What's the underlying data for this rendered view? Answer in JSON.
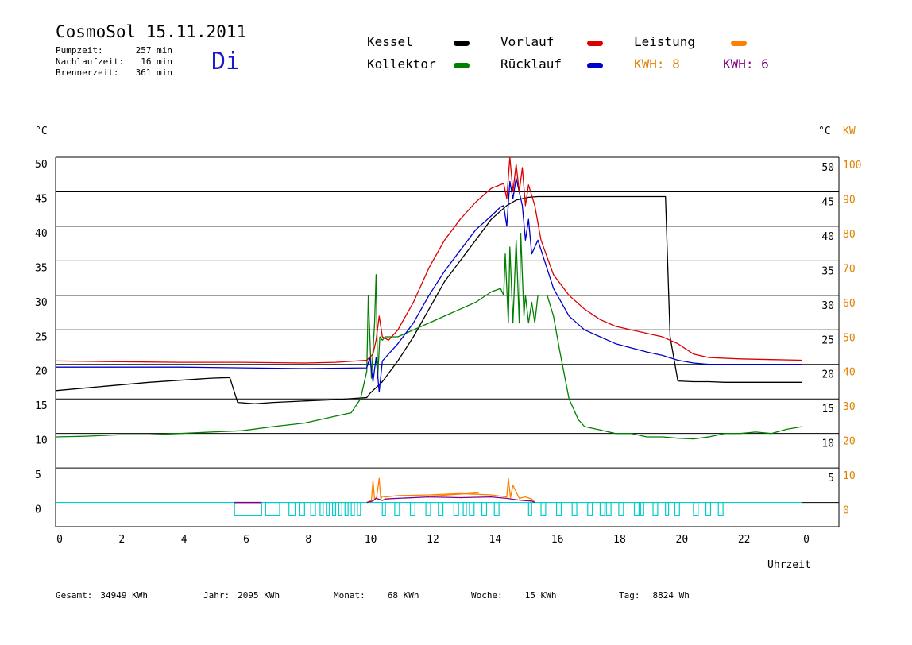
{
  "header": {
    "title": "CosmoSol 15.11.2011",
    "day": "Di",
    "stats": [
      {
        "label": "Pumpzeit:",
        "value": "257 min"
      },
      {
        "label": "Nachlaufzeit:",
        "value": "16 min"
      },
      {
        "label": "Brennerzeit:",
        "value": "361 min"
      }
    ]
  },
  "legend": {
    "kessel": "Kessel",
    "kollektor": "Kollektor",
    "vorlauf": "Vorlauf",
    "ruecklauf": "Rücklauf",
    "leistung": "Leistung",
    "kwh1": "KWH: 8",
    "kwh2": "KWH: 6"
  },
  "colors": {
    "kessel": "#000000",
    "kollektor": "#008000",
    "vorlauf": "#dd0000",
    "ruecklauf": "#0000cc",
    "leistung": "#ff8000",
    "kwh2": "#800080",
    "pump": "#00cccc"
  },
  "footer": {
    "gesamt_label": "Gesamt:",
    "gesamt_value": "34949 KWh",
    "jahr_label": "Jahr:",
    "jahr_value": "2095 KWh",
    "monat_label": "Monat:",
    "monat_value": "68 KWh",
    "woche_label": "Woche:",
    "woche_value": "15 KWh",
    "tag_label": "Tag:",
    "tag_value": "8824 Wh"
  },
  "chart_data": {
    "type": "line",
    "xlabel": "Uhrzeit",
    "ylabel_left": "°C",
    "ylabel_right_temp": "°C",
    "ylabel_right_power": "KW",
    "xlim": [
      0,
      24
    ],
    "ylim": [
      -3.5,
      50
    ],
    "x_ticks": [
      "0",
      "2",
      "4",
      "6",
      "8",
      "10",
      "12",
      "14",
      "16",
      "18",
      "20",
      "22",
      "0"
    ],
    "y_ticks_left": [
      "0",
      "5",
      "10",
      "15",
      "20",
      "25",
      "30",
      "35",
      "40",
      "45",
      "50"
    ],
    "y_ticks_right_temp": [
      "5",
      "10",
      "15",
      "20",
      "25",
      "30",
      "35",
      "40",
      "45",
      "50"
    ],
    "y_ticks_right_power": [
      "0",
      "10",
      "20",
      "30",
      "40",
      "50",
      "60",
      "70",
      "80",
      "90",
      "100"
    ],
    "grid": true,
    "series": [
      {
        "name": "Kessel",
        "key": "kessel",
        "x": [
          0,
          1,
          2,
          3,
          4,
          5,
          5.6,
          5.85,
          6.4,
          7,
          8,
          9,
          10,
          10.1,
          10.5,
          11,
          11.5,
          12,
          12.5,
          13,
          13.5,
          14,
          14.5,
          14.8,
          15.2,
          15.5,
          16,
          17,
          18,
          19,
          19.6,
          19.75,
          20,
          20.5,
          21,
          21.5,
          22,
          23,
          24
        ],
        "y": [
          16.2,
          16.6,
          17,
          17.4,
          17.7,
          18,
          18.1,
          14.5,
          14.3,
          14.5,
          14.7,
          14.9,
          15.2,
          15.8,
          17.5,
          20.5,
          24,
          28,
          32,
          35,
          38,
          41,
          43,
          43.8,
          44.2,
          44.3,
          44.3,
          44.3,
          44.3,
          44.3,
          44.3,
          24,
          17.6,
          17.5,
          17.5,
          17.4,
          17.4,
          17.4,
          17.4
        ]
      },
      {
        "name": "Vorlauf",
        "key": "vorlauf",
        "x": [
          0,
          2,
          4,
          6,
          8,
          9,
          10,
          10.2,
          10.3,
          10.4,
          10.5,
          10.7,
          11,
          11.5,
          12,
          12.5,
          13,
          13.5,
          14,
          14.4,
          14.5,
          14.6,
          14.7,
          14.8,
          14.9,
          15,
          15.1,
          15.2,
          15.4,
          15.6,
          16,
          16.5,
          17,
          17.5,
          18,
          18.5,
          19,
          19.5,
          20,
          20.5,
          21,
          22,
          23,
          24
        ],
        "y": [
          20.5,
          20.4,
          20.3,
          20.3,
          20.2,
          20.3,
          20.6,
          21.5,
          23.5,
          27,
          24,
          23.5,
          25,
          29,
          34,
          38,
          41,
          43.5,
          45.5,
          46.2,
          44,
          50,
          45,
          49,
          45,
          48.5,
          43,
          46,
          43,
          38,
          33,
          30,
          28,
          26.5,
          25.5,
          25,
          24.5,
          24,
          23,
          21.5,
          21,
          20.8,
          20.7,
          20.6
        ]
      },
      {
        "name": "Rücklauf",
        "key": "ruecklauf",
        "x": [
          0,
          2,
          4,
          6,
          8,
          10,
          10.1,
          10.2,
          10.3,
          10.4,
          10.5,
          11,
          11.5,
          12,
          12.5,
          13,
          13.5,
          14,
          14.3,
          14.4,
          14.5,
          14.6,
          14.7,
          14.8,
          14.9,
          15,
          15.1,
          15.2,
          15.3,
          15.5,
          16,
          16.5,
          17,
          18,
          19,
          19.5,
          20,
          20.5,
          21,
          22,
          23,
          24
        ],
        "y": [
          19.6,
          19.6,
          19.6,
          19.5,
          19.4,
          19.5,
          21,
          17.5,
          21,
          16,
          20.5,
          23,
          26,
          30,
          33.5,
          36.5,
          39.5,
          41.5,
          42.8,
          43,
          40,
          46.5,
          44,
          47,
          45,
          43,
          38,
          41,
          36,
          38,
          31,
          27,
          25,
          23,
          21.8,
          21.3,
          20.6,
          20.2,
          20,
          20,
          20,
          20
        ]
      },
      {
        "name": "Kollektor",
        "key": "kollektor",
        "x": [
          0,
          1,
          2,
          3,
          4,
          5,
          6,
          7,
          8,
          9,
          9.5,
          9.8,
          10,
          10.05,
          10.15,
          10.25,
          10.3,
          10.35,
          10.42,
          10.5,
          10.6,
          11,
          11.5,
          12,
          12.5,
          13,
          13.5,
          14,
          14.3,
          14.4,
          14.45,
          14.55,
          14.6,
          14.7,
          14.8,
          14.9,
          14.95,
          15.05,
          15.1,
          15.2,
          15.3,
          15.4,
          15.5,
          15.8,
          16,
          16.2,
          16.5,
          16.8,
          17,
          17.5,
          18,
          18.5,
          19,
          19.5,
          20,
          20.5,
          21,
          21.5,
          22,
          22.5,
          23,
          23.5,
          24
        ],
        "y": [
          9.5,
          9.6,
          9.8,
          9.8,
          10,
          10.2,
          10.4,
          11,
          11.5,
          12.5,
          13,
          15,
          19,
          30,
          18,
          26,
          33,
          18,
          24,
          23.5,
          24,
          24,
          25,
          26,
          27,
          28,
          29,
          30.5,
          31,
          30,
          36,
          26,
          37,
          26,
          38,
          26,
          39,
          27,
          30,
          26,
          29,
          26,
          30,
          30,
          27,
          22,
          15,
          12,
          11,
          10.5,
          10,
          10,
          9.5,
          9.5,
          9.3,
          9.2,
          9.5,
          10,
          10,
          10.2,
          10,
          10.6,
          11
        ]
      },
      {
        "name": "Leistung",
        "key": "leistung",
        "x": [
          10,
          10.15,
          10.2,
          10.25,
          10.32,
          10.4,
          10.45,
          10.5,
          10.6,
          11,
          12,
          12.5,
          13,
          14,
          14.5,
          14.55,
          14.62,
          14.7,
          14.9,
          15.1,
          15.3,
          15.4
        ],
        "y": [
          0,
          0.3,
          3.2,
          0.4,
          0.8,
          3.5,
          0.5,
          0.9,
          0.8,
          1,
          1.1,
          1.2,
          1.3,
          1.1,
          0.8,
          3.5,
          0.7,
          2.5,
          0.6,
          0.8,
          0.5,
          0
        ]
      },
      {
        "name": "KWH 6",
        "key": "kwh2",
        "x": [
          10,
          10.2,
          10.3,
          10.5,
          10.6,
          11,
          12,
          13,
          14,
          14.5,
          14.8,
          15,
          15.3,
          15.4
        ],
        "y": [
          0,
          0.2,
          0.6,
          0.3,
          0.5,
          0.6,
          0.8,
          0.7,
          0.8,
          0.6,
          0.4,
          0.3,
          0.2,
          0
        ]
      }
    ],
    "pump_line_y": 0,
    "pump_blocks": [
      [
        5.75,
        6.62
      ],
      [
        6.75,
        7.2
      ],
      [
        7.5,
        7.7
      ],
      [
        7.85,
        8.0
      ],
      [
        8.2,
        8.35
      ],
      [
        8.5,
        8.6
      ],
      [
        8.7,
        8.8
      ],
      [
        8.9,
        9.0
      ],
      [
        9.1,
        9.2
      ],
      [
        9.3,
        9.4
      ],
      [
        9.5,
        9.6
      ],
      [
        9.7,
        9.8
      ],
      [
        10.5,
        10.6
      ],
      [
        10.9,
        11.05
      ],
      [
        11.4,
        11.55
      ],
      [
        11.9,
        12.05
      ],
      [
        12.3,
        12.45
      ],
      [
        12.8,
        12.95
      ],
      [
        13.1,
        13.2
      ],
      [
        13.3,
        13.45
      ],
      [
        13.7,
        13.85
      ],
      [
        14.1,
        14.25
      ],
      [
        15.2,
        15.3
      ],
      [
        15.6,
        15.75
      ],
      [
        16.1,
        16.25
      ],
      [
        16.6,
        16.75
      ],
      [
        17.1,
        17.25
      ],
      [
        17.5,
        17.65
      ],
      [
        17.7,
        17.85
      ],
      [
        18.1,
        18.25
      ],
      [
        18.6,
        18.75
      ],
      [
        18.8,
        18.9
      ],
      [
        19.2,
        19.35
      ],
      [
        19.6,
        19.7
      ],
      [
        19.9,
        20.05
      ],
      [
        20.5,
        20.65
      ],
      [
        20.9,
        21.05
      ],
      [
        21.3,
        21.45
      ]
    ],
    "leistung_markers": [
      [
        12.0,
        0.9,
        13.6,
        1.4
      ]
    ]
  }
}
